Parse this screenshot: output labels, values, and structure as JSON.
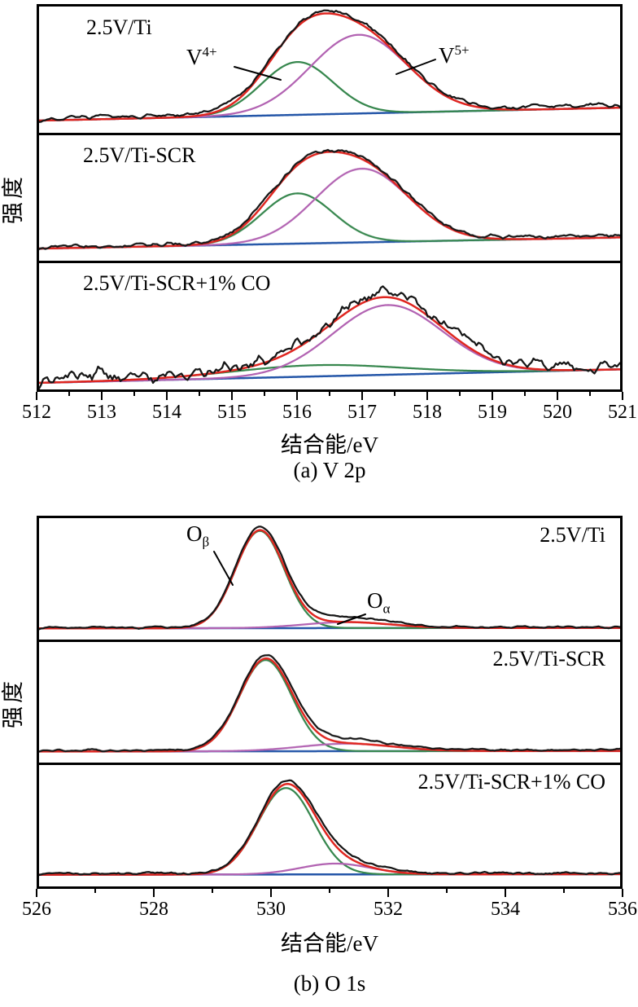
{
  "colors": {
    "raw": "#161616",
    "envelope": "#df2620",
    "component1": "#37874e",
    "component2": "#b263b2",
    "baseline": "#2456a8",
    "axis": "#000000"
  },
  "chart_data": [
    {
      "id": "v2p",
      "type": "line",
      "ylabel": "强度",
      "xlabel": "结合能/eV",
      "caption": "(a) V 2p",
      "x_range": [
        512,
        521
      ],
      "xticks": [
        512,
        513,
        514,
        515,
        516,
        517,
        518,
        519,
        520,
        521
      ],
      "xticks_minor": [
        512.5,
        513.5,
        514.5,
        515.5,
        516.5,
        517.5,
        518.5,
        519.5,
        520.5
      ],
      "curves": [
        "raw spectrum",
        "fit envelope",
        "V4+ component",
        "V5+ component",
        "baseline"
      ],
      "subplots": [
        {
          "label": "2.5V/Ti",
          "baseline": [
            0.03,
            0.145
          ],
          "noise": 0.016,
          "raw_lift": 0.02,
          "seed": 7,
          "peaks": [
            {
              "name": "V4+",
              "center": 516.0,
              "sigma": 0.55,
              "amp": 0.47,
              "color": "component1"
            },
            {
              "name": "V5+",
              "center": 516.95,
              "sigma": 0.75,
              "amp": 0.7,
              "color": "component2"
            }
          ],
          "annotations": {
            "v4": {
              "main": "V",
              "sup": "4+"
            },
            "v5": {
              "main": "V",
              "sup": "5+"
            }
          }
        },
        {
          "label": "2.5V/Ti-SCR",
          "baseline": [
            0.03,
            0.13
          ],
          "noise": 0.016,
          "raw_lift": 0.018,
          "seed": 13,
          "peaks": [
            {
              "name": "V4+",
              "center": 516.0,
              "sigma": 0.55,
              "amp": 0.45,
              "color": "component1"
            },
            {
              "name": "V5+",
              "center": 517.0,
              "sigma": 0.72,
              "amp": 0.66,
              "color": "component2"
            }
          ]
        },
        {
          "label": "2.5V/Ti-SCR+1% CO",
          "baseline": [
            -0.02,
            0.1
          ],
          "noise": 0.05,
          "raw_lift": 0.04,
          "seed": 29,
          "peaks": [
            {
              "name": "V4+",
              "center": 516.3,
              "sigma": 1.3,
              "amp": 0.1,
              "color": "component1"
            },
            {
              "name": "V5+",
              "center": 517.4,
              "sigma": 0.85,
              "amp": 0.62,
              "color": "component2"
            }
          ]
        }
      ]
    },
    {
      "id": "o1s",
      "type": "line",
      "ylabel": "强度",
      "xlabel": "结合能/eV",
      "caption": "(b) O 1s",
      "x_range": [
        526,
        536
      ],
      "xticks": [
        526,
        528,
        530,
        532,
        534,
        536
      ],
      "xticks_minor": [
        527,
        529,
        531,
        533,
        535
      ],
      "curves": [
        "raw spectrum",
        "fit envelope",
        "O_beta component",
        "O_alpha component",
        "baseline"
      ],
      "subplots": [
        {
          "label": "2.5V/Ti",
          "baseline": [
            0.025,
            0.03
          ],
          "noise": 0.007,
          "raw_lift": 0.008,
          "seed": 5,
          "raw_extra": {
            "center": 530.8,
            "sigma": 0.9,
            "amp": 0.045
          },
          "peaks": [
            {
              "name": "O_beta",
              "center": 529.8,
              "sigma": 0.42,
              "amp": 0.9,
              "color": "component1"
            },
            {
              "name": "O_alpha",
              "center": 531.3,
              "sigma": 0.75,
              "amp": 0.055,
              "color": "component2"
            }
          ],
          "annotations": {
            "o_beta": {
              "main": "O",
              "sub": "β"
            },
            "o_alpha": {
              "main": "O",
              "sub": "α"
            }
          }
        },
        {
          "label": "2.5V/Ti-SCR",
          "baseline": [
            0.025,
            0.03
          ],
          "noise": 0.007,
          "raw_lift": 0.01,
          "seed": 11,
          "raw_extra": {
            "center": 530.9,
            "sigma": 0.9,
            "amp": 0.04
          },
          "peaks": [
            {
              "name": "O_beta",
              "center": 529.9,
              "sigma": 0.45,
              "amp": 0.85,
              "color": "component1"
            },
            {
              "name": "O_alpha",
              "center": 531.3,
              "sigma": 0.8,
              "amp": 0.07,
              "color": "component2"
            }
          ]
        },
        {
          "label": "2.5V/Ti-SCR+1% CO",
          "baseline": [
            0.03,
            0.035
          ],
          "noise": 0.009,
          "raw_lift": 0.01,
          "seed": 23,
          "raw_extra": {
            "center": 531.0,
            "sigma": 0.9,
            "amp": 0.03
          },
          "peaks": [
            {
              "name": "O_beta",
              "center": 530.25,
              "sigma": 0.48,
              "amp": 0.8,
              "color": "component1"
            },
            {
              "name": "O_alpha",
              "center": 531.1,
              "sigma": 0.6,
              "amp": 0.1,
              "color": "component2"
            }
          ]
        }
      ]
    }
  ]
}
